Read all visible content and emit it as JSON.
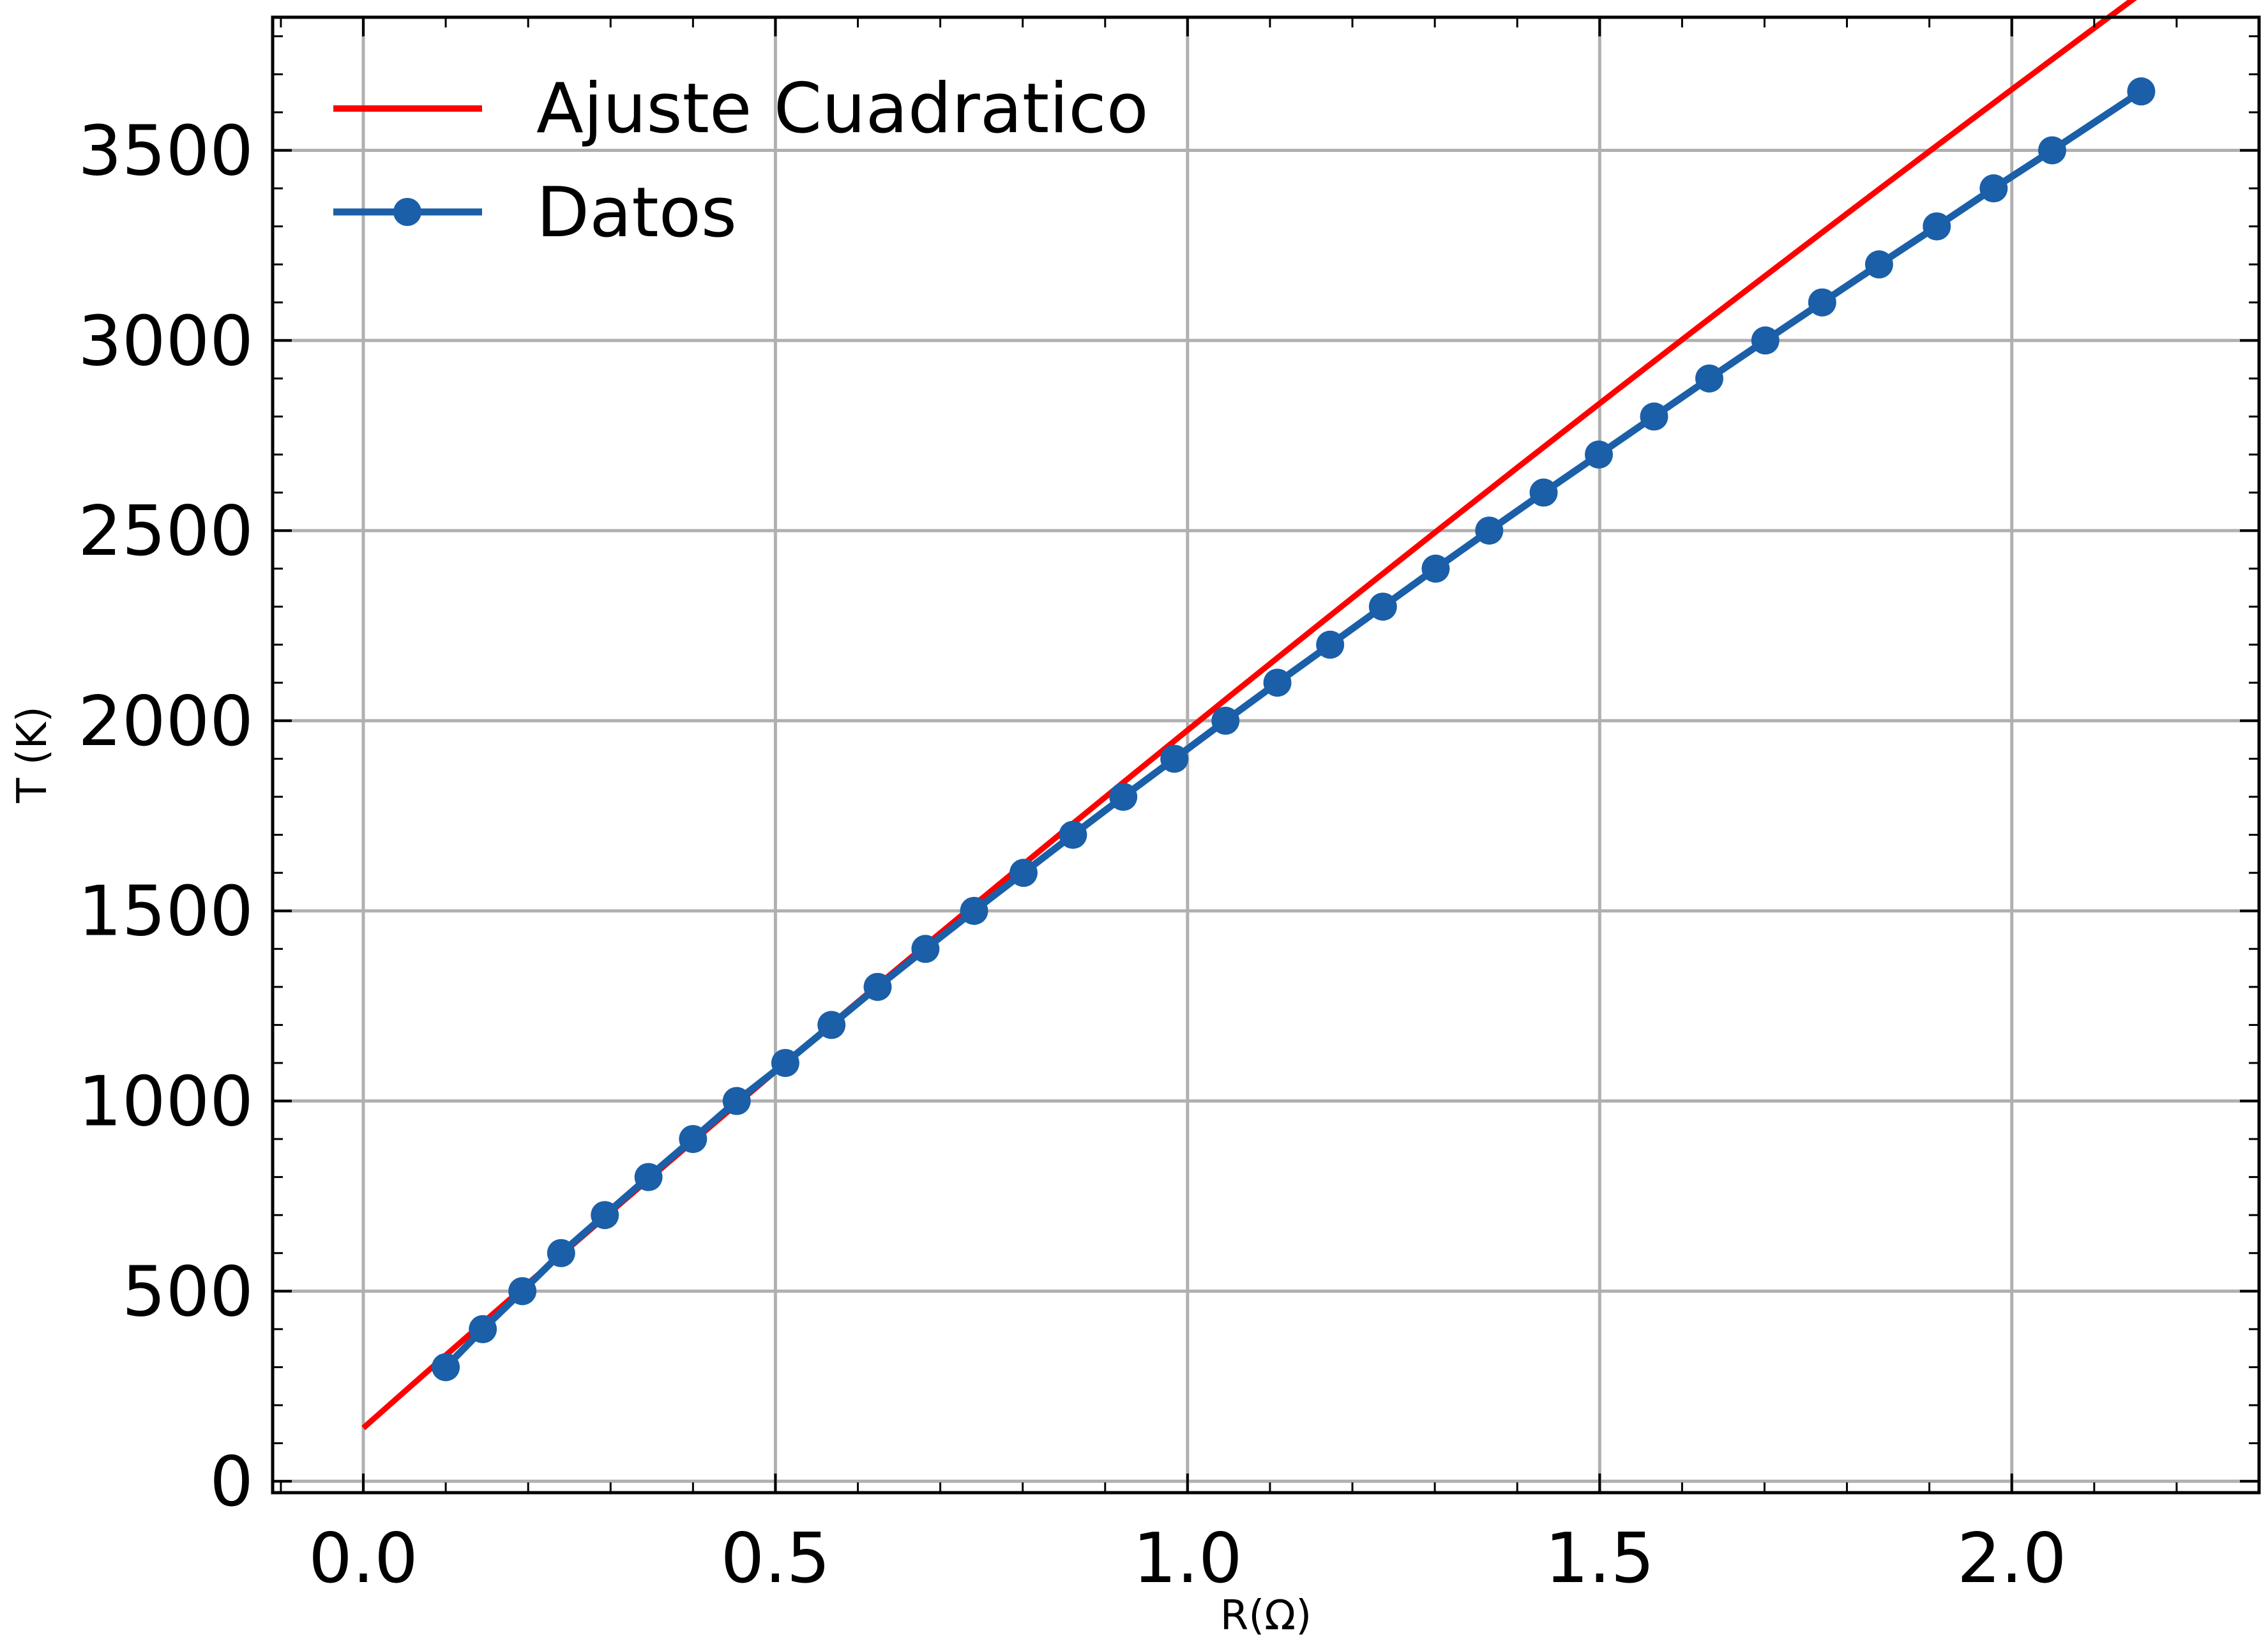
{
  "chart_data": {
    "type": "line",
    "xlabel": "R(Ω)",
    "ylabel": "T (K)",
    "xlim": [
      -0.11,
      2.3
    ],
    "ylim": [
      -30,
      3850
    ],
    "x_ticks": [
      0.0,
      0.5,
      1.0,
      1.5,
      2.0
    ],
    "x_tick_labels": [
      "0.0",
      "0.5",
      "1.0",
      "1.5",
      "2.0"
    ],
    "y_ticks": [
      0,
      500,
      1000,
      1500,
      2000,
      2500,
      3000,
      3500
    ],
    "y_tick_labels": [
      "0",
      "500",
      "1000",
      "1500",
      "2000",
      "2500",
      "3000",
      "3500"
    ],
    "grid": true,
    "legend_position": "top-left",
    "series": [
      {
        "name": "Ajuste Cuadratico",
        "color": "#ff0000",
        "style": "line",
        "x": [
          0.0,
          0.25,
          0.5,
          0.75,
          1.0,
          1.25,
          1.5,
          1.75,
          2.0,
          2.2
        ],
        "y": [
          140,
          613,
          1082,
          1547,
          2008,
          2465,
          2918,
          3367,
          3812,
          3685
        ]
      },
      {
        "name": "Datos",
        "color": "#1a5fa8",
        "style": "line-marker",
        "x": [
          0.1,
          0.145,
          0.193,
          0.24,
          0.293,
          0.346,
          0.4,
          0.453,
          0.512,
          0.568,
          0.624,
          0.682,
          0.741,
          0.801,
          0.861,
          0.922,
          0.984,
          1.046,
          1.109,
          1.173,
          1.237,
          1.301,
          1.366,
          1.432,
          1.499,
          1.566,
          1.633,
          1.701,
          1.77,
          1.839,
          1.909,
          1.978,
          2.049,
          2.157
        ],
        "y": [
          300,
          400,
          500,
          600,
          700,
          800,
          900,
          1000,
          1100,
          1200,
          1300,
          1400,
          1500,
          1600,
          1700,
          1800,
          1900,
          2000,
          2100,
          2200,
          2300,
          2400,
          2500,
          2600,
          2700,
          2800,
          2900,
          3000,
          3100,
          3200,
          3300,
          3400,
          3500,
          3655
        ]
      }
    ]
  }
}
